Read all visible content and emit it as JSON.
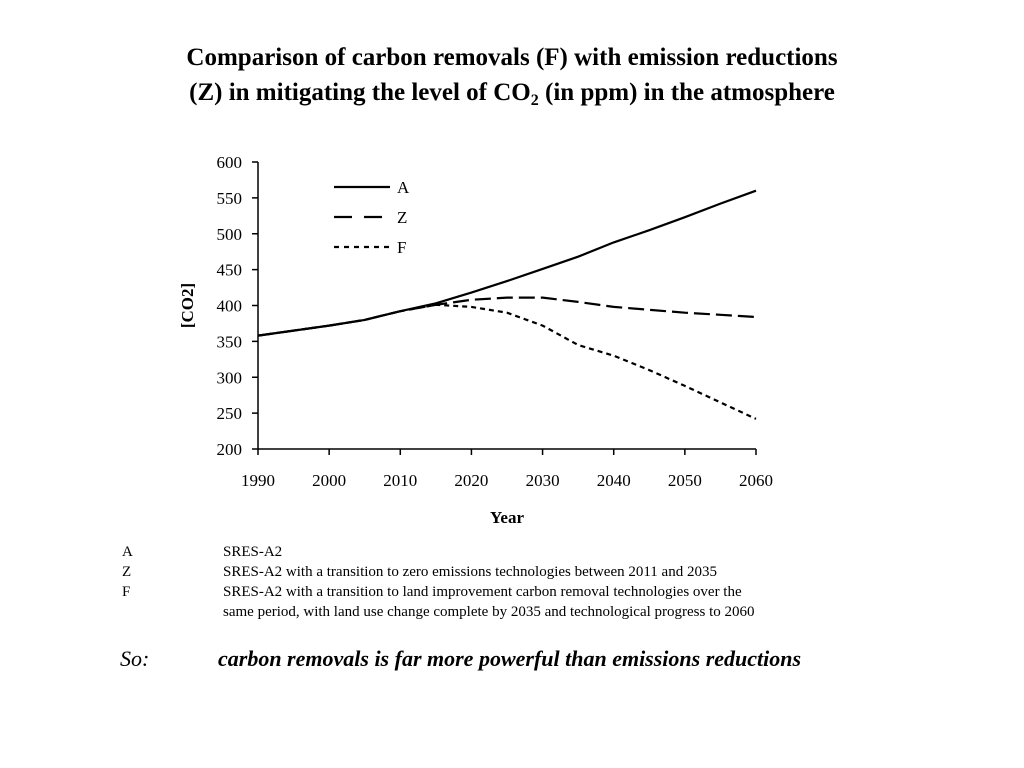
{
  "title": {
    "line1": "Comparison of carbon removals (F) with emission reductions",
    "line2_before": "(Z) in mitigating the level of CO",
    "line2_sub": "2",
    "line2_after": " (in ppm) in the atmosphere"
  },
  "chart_data": {
    "type": "line",
    "title": "",
    "xlabel": "Year",
    "ylabel": "[CO2]",
    "xlim": [
      1990,
      2060
    ],
    "ylim": [
      200,
      600
    ],
    "xticks": [
      1990,
      2000,
      2010,
      2020,
      2030,
      2040,
      2050,
      2060
    ],
    "yticks": [
      200,
      250,
      300,
      350,
      400,
      450,
      500,
      550,
      600
    ],
    "grid": false,
    "legend_position": "top-left",
    "series": [
      {
        "name": "A",
        "style": "solid",
        "x": [
          1990,
          1995,
          2000,
          2005,
          2010,
          2015,
          2020,
          2025,
          2030,
          2035,
          2040,
          2045,
          2050,
          2055,
          2060
        ],
        "y": [
          358,
          365,
          372,
          380,
          392,
          403,
          418,
          434,
          451,
          468,
          488,
          505,
          523,
          542,
          560
        ]
      },
      {
        "name": "Z",
        "style": "dashed",
        "x": [
          1990,
          1995,
          2000,
          2005,
          2010,
          2015,
          2020,
          2025,
          2030,
          2035,
          2040,
          2045,
          2050,
          2055,
          2060
        ],
        "y": [
          358,
          365,
          372,
          380,
          392,
          401,
          408,
          411,
          411,
          405,
          398,
          394,
          390,
          387,
          384
        ]
      },
      {
        "name": "F",
        "style": "dotted",
        "x": [
          1990,
          1995,
          2000,
          2005,
          2010,
          2015,
          2020,
          2025,
          2030,
          2035,
          2040,
          2045,
          2050,
          2055,
          2060
        ],
        "y": [
          358,
          365,
          372,
          380,
          392,
          401,
          398,
          390,
          372,
          345,
          330,
          310,
          288,
          265,
          242
        ]
      }
    ]
  },
  "notes": [
    {
      "key": "A",
      "text": "SRES-A2"
    },
    {
      "key": "Z",
      "text": "SRES-A2 with a transition to zero emissions technologies between 2011 and 2035"
    },
    {
      "key": "F",
      "text": "SRES-A2 with a transition to land improvement carbon removal technologies over the",
      "text2": "same period, with land use change complete by 2035 and technological progress to 2060"
    }
  ],
  "conclusion": {
    "label": "So:",
    "text": "carbon removals is far more powerful than emissions reductions"
  }
}
